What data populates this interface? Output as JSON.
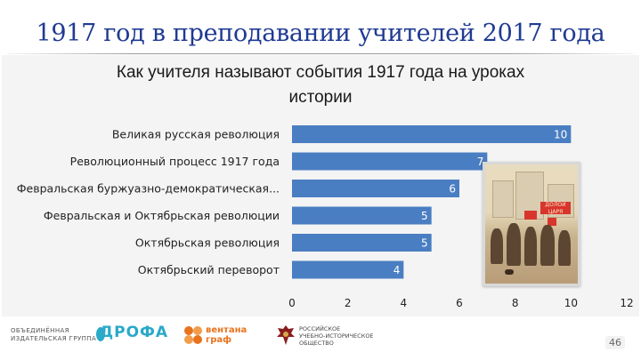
{
  "slide": {
    "title": "1917 год в преподавании учителей 2017 года",
    "page_number": "46"
  },
  "chart_data": {
    "type": "bar",
    "orientation": "horizontal",
    "title_lines": [
      "Как учителя называют события 1917 года на уроках",
      "истории"
    ],
    "categories": [
      "Великая русская революция",
      "Революционный процесс 1917 года",
      "Февральская буржуазно-демократическая...",
      "Февральская и Октябрьская революции",
      "Октябрьская революция",
      "Октябрьский переворот"
    ],
    "values": [
      10,
      7,
      6,
      5,
      5,
      4
    ],
    "xlim": [
      0,
      12
    ],
    "xticks": [
      "0",
      "2",
      "4",
      "6",
      "8",
      "10",
      "12"
    ],
    "data_labels": [
      "10",
      "7",
      "6",
      "5",
      "5",
      "4"
    ],
    "bar_color": "#4a7ec2",
    "grid": false,
    "legend": "none"
  },
  "footer": {
    "group_text_1": "ОБЪЕДИНЁННАЯ",
    "group_text_2": "ИЗДАТЕЛЬСКАЯ ГРУППА",
    "drofa": "ДРОФА",
    "ventana_1": "вентана",
    "ventana_2": "граф",
    "rus_1": "РОССИЙСКОЕ",
    "rus_2": "УЧЕБНО-ИСТОРИЧЕСКОЕ",
    "rus_3": "ОБЩЕСТВО"
  },
  "painting": {
    "banner_text": "ДОЛОЙ ЦАРЯ",
    "description_icon": "painting-image"
  }
}
